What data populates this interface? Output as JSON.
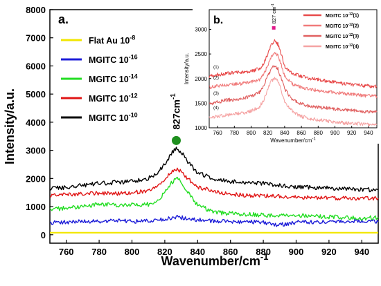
{
  "chart_data": [
    {
      "panel": "a.",
      "type": "line",
      "xlabel": "Wavenumber/cm",
      "xlabel_sup": "-1",
      "ylabel": "Intensity/a.u.",
      "xlim": [
        750,
        950
      ],
      "ylim": [
        -300,
        8000
      ],
      "xticks": [
        760,
        780,
        800,
        820,
        840,
        860,
        880,
        900,
        920,
        940
      ],
      "yticks": [
        0,
        1000,
        2000,
        3000,
        4000,
        5000,
        6000,
        7000,
        8000
      ],
      "legend_position": "top-left",
      "annotation": {
        "text": "827cm",
        "sup": "-1",
        "x": 827,
        "marker_y": 3350,
        "marker_color": "#1f8f1f"
      },
      "series": [
        {
          "name": "Flat Au 10",
          "exp": "-8",
          "color": "#f2e600",
          "points": [
            [
              750,
              70
            ],
            [
              800,
              70
            ],
            [
              850,
              70
            ],
            [
              900,
              70
            ],
            [
              950,
              70
            ]
          ]
        },
        {
          "name": "MGITC 10",
          "exp": "-16",
          "color": "#1c1cd8",
          "points": [
            [
              750,
              430
            ],
            [
              760,
              440
            ],
            [
              770,
              470
            ],
            [
              780,
              480
            ],
            [
              790,
              510
            ],
            [
              800,
              470
            ],
            [
              810,
              500
            ],
            [
              820,
              540
            ],
            [
              827,
              640
            ],
            [
              835,
              560
            ],
            [
              845,
              500
            ],
            [
              860,
              470
            ],
            [
              880,
              450
            ],
            [
              888,
              330
            ],
            [
              900,
              440
            ],
            [
              920,
              470
            ],
            [
              940,
              480
            ],
            [
              950,
              460
            ]
          ]
        },
        {
          "name": "MGITC 10",
          "exp": "-14",
          "color": "#22dd22",
          "points": [
            [
              750,
              900
            ],
            [
              760,
              950
            ],
            [
              770,
              1000
            ],
            [
              780,
              1080
            ],
            [
              790,
              1050
            ],
            [
              800,
              1060
            ],
            [
              810,
              1080
            ],
            [
              815,
              1200
            ],
            [
              820,
              1500
            ],
            [
              824,
              1850
            ],
            [
              827,
              2000
            ],
            [
              830,
              1900
            ],
            [
              834,
              1500
            ],
            [
              840,
              1050
            ],
            [
              850,
              800
            ],
            [
              860,
              750
            ],
            [
              870,
              730
            ],
            [
              880,
              700
            ],
            [
              890,
              680
            ],
            [
              900,
              700
            ],
            [
              910,
              650
            ],
            [
              920,
              630
            ],
            [
              930,
              620
            ],
            [
              940,
              580
            ],
            [
              950,
              620
            ]
          ]
        },
        {
          "name": "MGITC 10",
          "exp": "-12",
          "color": "#e01515",
          "points": [
            [
              750,
              1400
            ],
            [
              760,
              1430
            ],
            [
              770,
              1450
            ],
            [
              780,
              1480
            ],
            [
              790,
              1460
            ],
            [
              800,
              1500
            ],
            [
              810,
              1550
            ],
            [
              815,
              1700
            ],
            [
              820,
              2000
            ],
            [
              824,
              2220
            ],
            [
              827,
              2320
            ],
            [
              830,
              2250
            ],
            [
              834,
              2000
            ],
            [
              840,
              1700
            ],
            [
              850,
              1550
            ],
            [
              860,
              1450
            ],
            [
              870,
              1400
            ],
            [
              880,
              1380
            ],
            [
              890,
              1370
            ],
            [
              900,
              1340
            ],
            [
              910,
              1320
            ],
            [
              920,
              1300
            ],
            [
              930,
              1300
            ],
            [
              940,
              1280
            ],
            [
              950,
              1300
            ]
          ]
        },
        {
          "name": "MGITC 10",
          "exp": "-10",
          "color": "#000000",
          "points": [
            [
              750,
              1640
            ],
            [
              760,
              1680
            ],
            [
              770,
              1760
            ],
            [
              780,
              1820
            ],
            [
              790,
              1860
            ],
            [
              800,
              1890
            ],
            [
              810,
              2000
            ],
            [
              815,
              2200
            ],
            [
              820,
              2500
            ],
            [
              824,
              2900
            ],
            [
              827,
              3060
            ],
            [
              830,
              2950
            ],
            [
              834,
              2600
            ],
            [
              840,
              2200
            ],
            [
              850,
              1980
            ],
            [
              860,
              1900
            ],
            [
              870,
              1850
            ],
            [
              880,
              1820
            ],
            [
              890,
              1760
            ],
            [
              900,
              1700
            ],
            [
              910,
              1680
            ],
            [
              920,
              1650
            ],
            [
              930,
              1620
            ],
            [
              940,
              1600
            ],
            [
              950,
              1600
            ]
          ]
        }
      ]
    },
    {
      "panel": "b.",
      "type": "line",
      "xlabel": "Wavenumber/cm",
      "xlabel_sup": "-1",
      "ylabel": "Intensity/a.u.",
      "xlim": [
        750,
        950
      ],
      "ylim": [
        1000,
        3400
      ],
      "xticks": [
        760,
        780,
        800,
        820,
        840,
        860,
        880,
        900,
        920,
        940
      ],
      "yticks": [
        1000,
        1500,
        2000,
        2500,
        3000
      ],
      "legend_position": "top-right",
      "annotation": {
        "text": "827 cm",
        "sup": "-1",
        "x": 827,
        "marker_y": 3030,
        "marker_color": "#e0198a"
      },
      "curve_labels": [
        "(1)",
        "(2)",
        "(3)",
        "(4)"
      ],
      "series": [
        {
          "name": "MGITC 10",
          "exp": "-12",
          "suffix": "(1)",
          "color": "#e84a4a",
          "points": [
            [
              750,
              2050
            ],
            [
              760,
              2080
            ],
            [
              770,
              2100
            ],
            [
              780,
              2120
            ],
            [
              790,
              2130
            ],
            [
              800,
              2150
            ],
            [
              810,
              2200
            ],
            [
              815,
              2300
            ],
            [
              820,
              2500
            ],
            [
              824,
              2680
            ],
            [
              828,
              2760
            ],
            [
              832,
              2700
            ],
            [
              836,
              2500
            ],
            [
              840,
              2250
            ],
            [
              850,
              2100
            ],
            [
              860,
              2050
            ],
            [
              870,
              2000
            ],
            [
              880,
              1980
            ],
            [
              890,
              1950
            ],
            [
              900,
              1920
            ],
            [
              910,
              1900
            ],
            [
              920,
              1880
            ],
            [
              930,
              1860
            ],
            [
              940,
              1850
            ],
            [
              950,
              1840
            ]
          ]
        },
        {
          "name": "MGITC 10",
          "exp": "-12",
          "suffix": "(2)",
          "color": "#f07a7a",
          "points": [
            [
              750,
              1820
            ],
            [
              760,
              1850
            ],
            [
              770,
              1870
            ],
            [
              780,
              1890
            ],
            [
              790,
              1900
            ],
            [
              800,
              1930
            ],
            [
              810,
              1980
            ],
            [
              815,
              2080
            ],
            [
              820,
              2280
            ],
            [
              824,
              2450
            ],
            [
              828,
              2520
            ],
            [
              832,
              2460
            ],
            [
              836,
              2280
            ],
            [
              840,
              2050
            ],
            [
              850,
              1880
            ],
            [
              860,
              1820
            ],
            [
              870,
              1780
            ],
            [
              880,
              1760
            ],
            [
              890,
              1740
            ],
            [
              900,
              1720
            ],
            [
              910,
              1700
            ],
            [
              920,
              1680
            ],
            [
              930,
              1660
            ],
            [
              940,
              1650
            ],
            [
              950,
              1640
            ]
          ]
        },
        {
          "name": "MGITC 10",
          "exp": "-12",
          "suffix": "(3)",
          "color": "#e06060",
          "points": [
            [
              750,
              1480
            ],
            [
              760,
              1520
            ],
            [
              770,
              1560
            ],
            [
              780,
              1580
            ],
            [
              790,
              1600
            ],
            [
              800,
              1640
            ],
            [
              810,
              1720
            ],
            [
              815,
              1850
            ],
            [
              820,
              2050
            ],
            [
              824,
              2200
            ],
            [
              828,
              2260
            ],
            [
              832,
              2200
            ],
            [
              836,
              2000
            ],
            [
              840,
              1780
            ],
            [
              850,
              1560
            ],
            [
              860,
              1480
            ],
            [
              870,
              1440
            ],
            [
              880,
              1420
            ],
            [
              890,
              1400
            ],
            [
              900,
              1380
            ],
            [
              910,
              1370
            ],
            [
              920,
              1360
            ],
            [
              930,
              1340
            ],
            [
              940,
              1320
            ],
            [
              950,
              1320
            ]
          ]
        },
        {
          "name": "MGITC 10",
          "exp": "-12",
          "suffix": "(4)",
          "color": "#f5a3a3",
          "points": [
            [
              750,
              1200
            ],
            [
              760,
              1230
            ],
            [
              770,
              1260
            ],
            [
              780,
              1280
            ],
            [
              790,
              1300
            ],
            [
              800,
              1340
            ],
            [
              810,
              1430
            ],
            [
              815,
              1560
            ],
            [
              820,
              1780
            ],
            [
              824,
              1950
            ],
            [
              828,
              2000
            ],
            [
              832,
              1940
            ],
            [
              836,
              1760
            ],
            [
              840,
              1530
            ],
            [
              850,
              1320
            ],
            [
              860,
              1230
            ],
            [
              870,
              1190
            ],
            [
              880,
              1160
            ],
            [
              890,
              1140
            ],
            [
              900,
              1120
            ],
            [
              910,
              1100
            ],
            [
              920,
              1090
            ],
            [
              930,
              1080
            ],
            [
              940,
              1070
            ],
            [
              950,
              1060
            ]
          ]
        }
      ]
    }
  ]
}
